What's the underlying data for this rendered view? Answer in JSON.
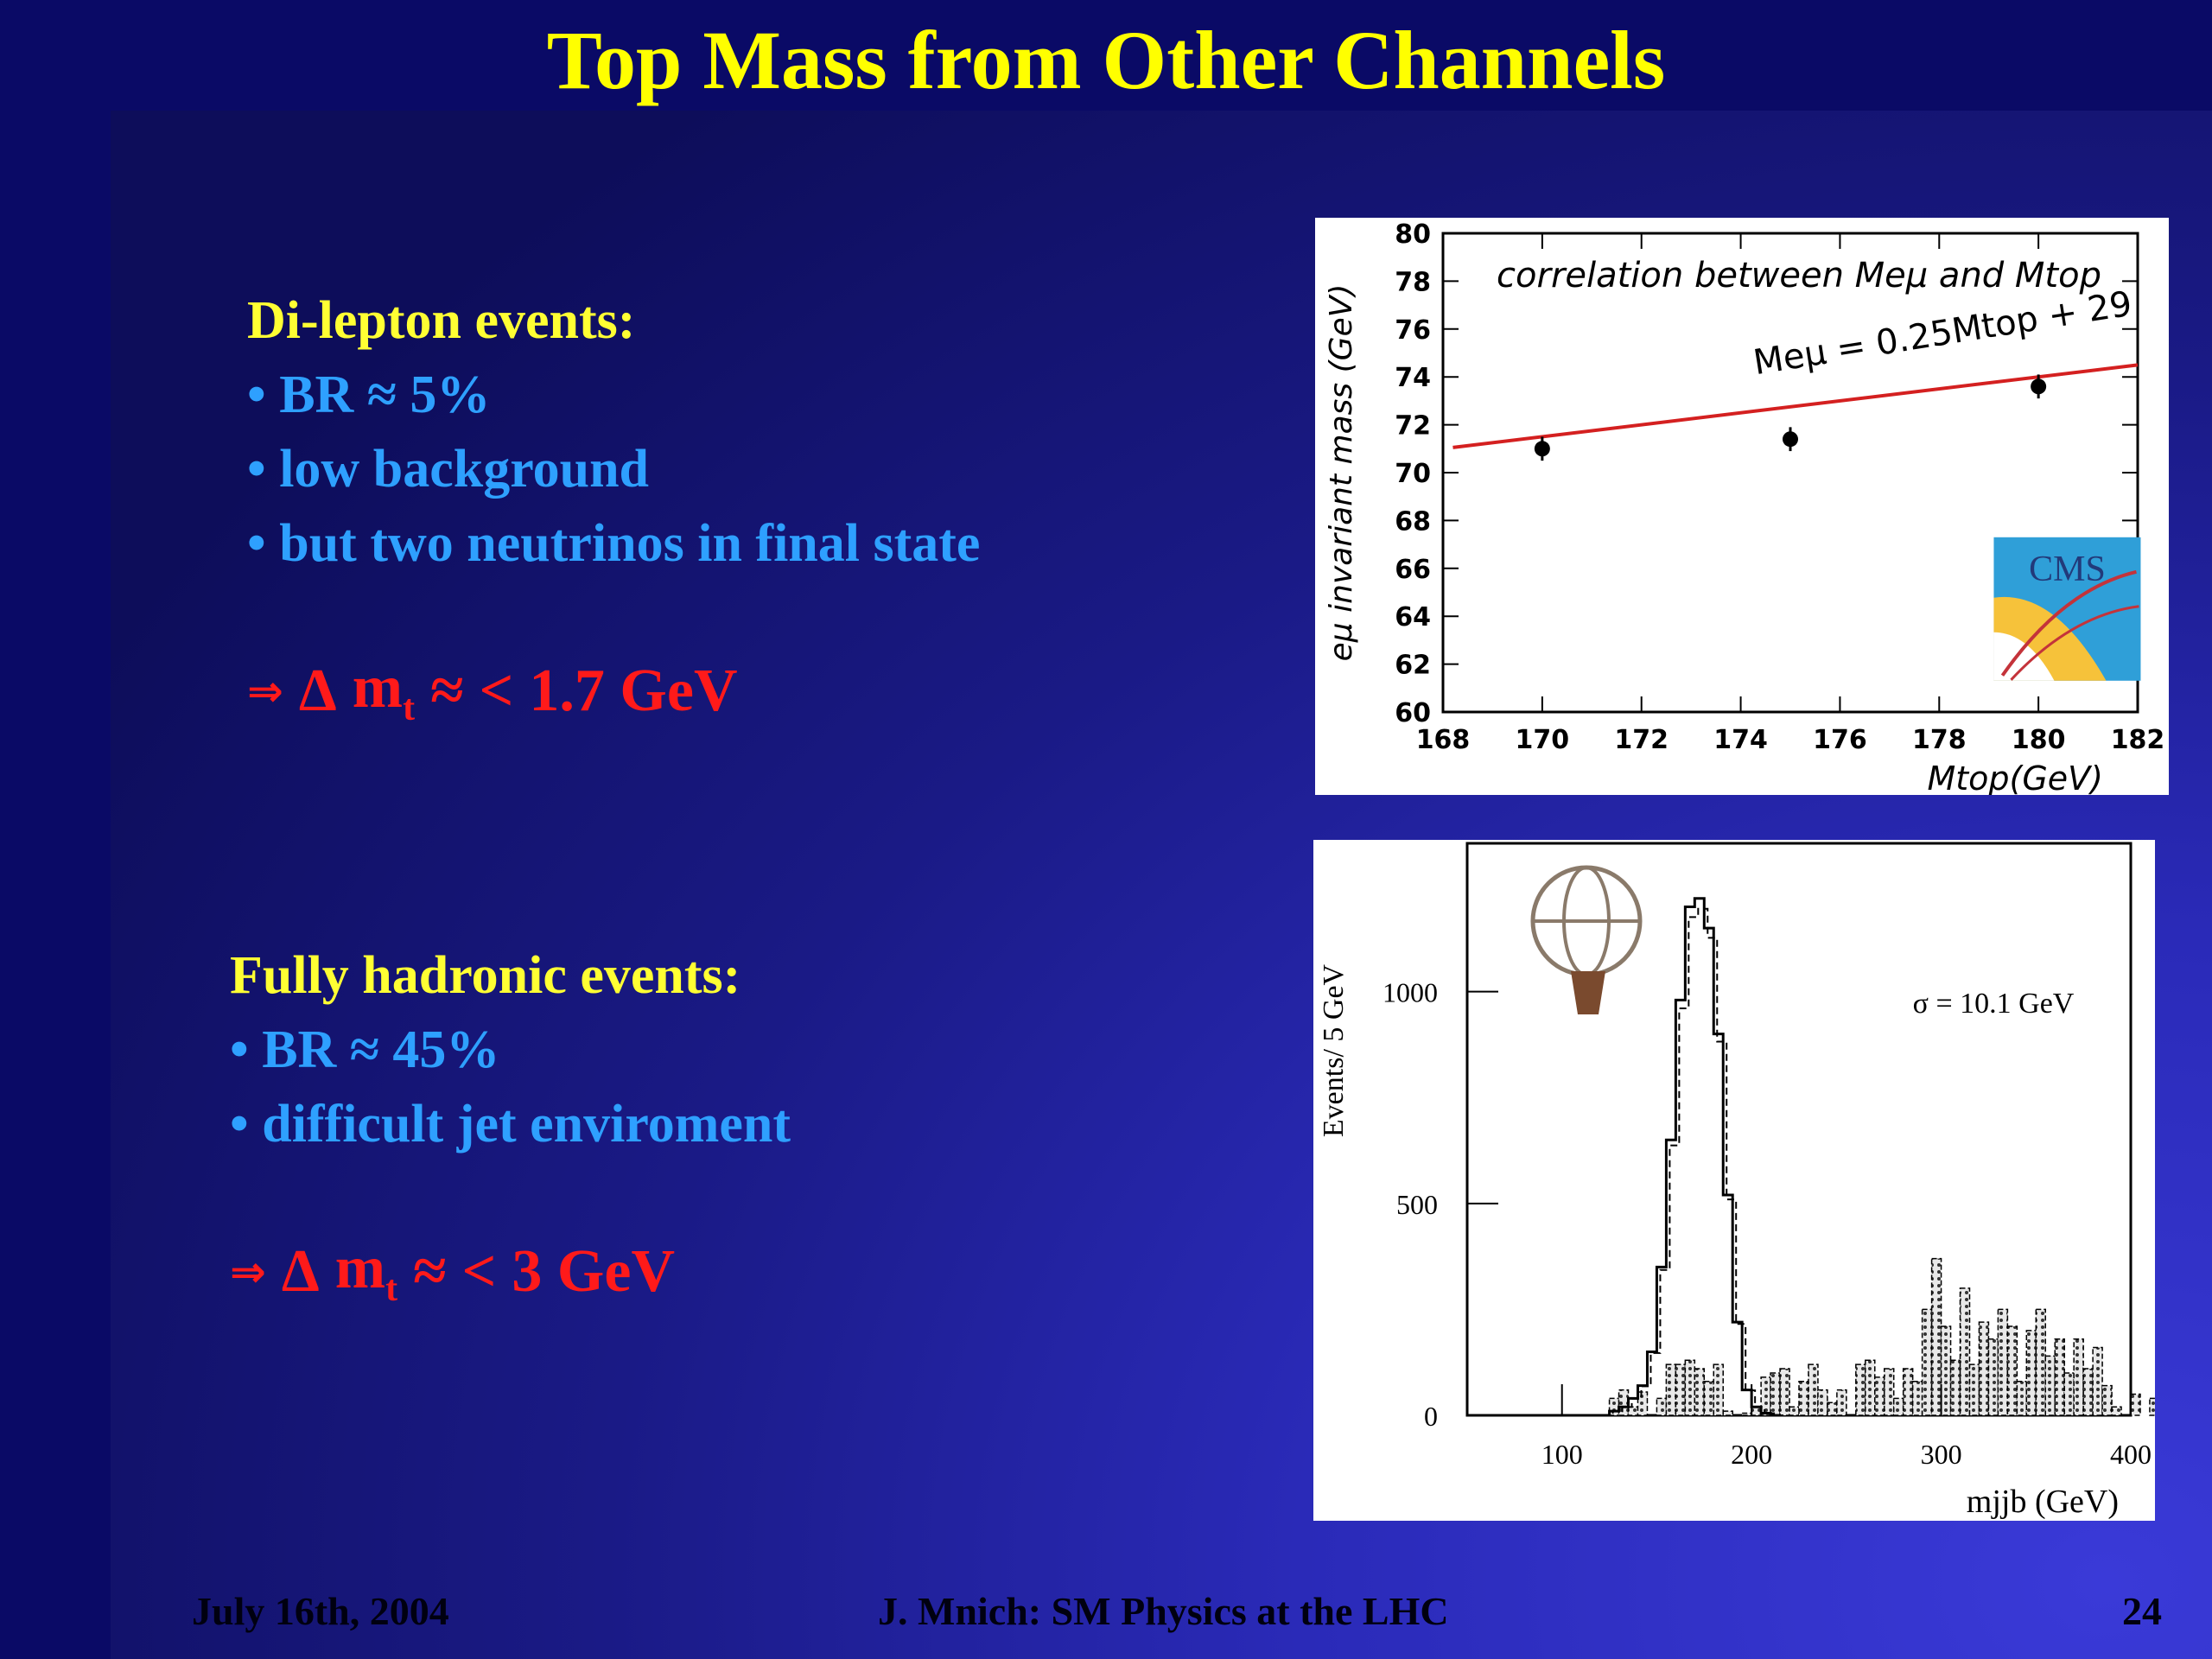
{
  "slide": {
    "title": "Top Mass from Other Channels",
    "footer_left": "July 16th, 2004",
    "footer_center": "J. Mnich: SM Physics at the LHC",
    "footer_right": "24"
  },
  "dilepton": {
    "heading": "Di-lepton events:",
    "bullets": [
      "• BR ≈ 5%",
      "• low background",
      "• but two neutrinos in final state"
    ],
    "result_symbol": "m",
    "result_sub": "t",
    "result_value": "1.7 GeV",
    "relation_glyph": "≈",
    "lt_glyph": "<"
  },
  "hadronic": {
    "heading": "Fully hadronic events:",
    "bullets": [
      "• BR ≈ 45%",
      "• difficult jet enviroment"
    ],
    "result_symbol": "m",
    "result_sub": "t",
    "result_value": "3 GeV",
    "relation_glyph": "≈",
    "lt_glyph": "<"
  },
  "colors": {
    "title": "#ffff00",
    "heading": "#ffff33",
    "bullet": "#2ea0ff",
    "result": "#ff1a1a",
    "fit_line": "#d42020"
  },
  "icons": [
    "arrow-icon",
    "delta-icon",
    "approx-icon",
    "less-than-icon",
    "cms-logo",
    "atlas-logo"
  ],
  "chart_data": [
    {
      "type": "scatter",
      "title": "correlation between Meμ and Mtop",
      "annotation": "Meμ = 0.25Mtop + 29",
      "xlabel": "Mtop(GeV)",
      "ylabel": "eμ invariant mass (GeV)",
      "xlim": [
        168,
        182
      ],
      "ylim": [
        60,
        80
      ],
      "x_ticks": [
        "168",
        "170",
        "172",
        "174",
        "176",
        "178",
        "180",
        "182"
      ],
      "y_ticks": [
        "60",
        "62",
        "64",
        "66",
        "68",
        "70",
        "72",
        "74",
        "76",
        "78",
        "80"
      ],
      "points": [
        {
          "x": 170,
          "y": 71.0,
          "err": 0.5
        },
        {
          "x": 175,
          "y": 71.4,
          "err": 0.5
        },
        {
          "x": 180,
          "y": 73.6,
          "err": 0.5
        }
      ],
      "fit": {
        "slope": 0.25,
        "intercept": 29,
        "x_range": [
          168.2,
          182
        ]
      },
      "legend": "CMS"
    },
    {
      "type": "histogram",
      "annotation": "σ = 10.1 GeV",
      "xlabel": "mjjb (GeV)",
      "ylabel": "Events/ 5 GeV",
      "xlim": [
        50,
        400
      ],
      "ylim": [
        0,
        1350
      ],
      "x_ticks": [
        "100",
        "200",
        "300",
        "400"
      ],
      "y_ticks": [
        "0",
        "500",
        "1000"
      ],
      "bin_width": 5,
      "signal_bins_start": 120,
      "signal": [
        0,
        10,
        20,
        40,
        70,
        150,
        350,
        650,
        980,
        1200,
        1220,
        1150,
        900,
        520,
        220,
        60,
        20,
        5,
        0
      ],
      "background_bins_start": 120,
      "background": [
        0,
        40,
        60,
        20,
        55,
        0,
        40,
        120,
        120,
        130,
        110,
        80,
        120,
        10,
        0,
        5,
        20,
        90,
        100,
        110,
        20,
        80,
        120,
        60,
        30,
        60,
        0,
        120,
        130,
        90,
        110,
        40,
        110,
        80,
        250,
        370,
        210,
        130,
        300,
        120,
        220,
        180,
        250,
        210,
        80,
        200,
        250,
        140,
        180,
        100,
        180,
        110,
        160,
        70,
        20,
        0,
        50,
        0,
        40,
        0,
        0
      ],
      "legend": "ATLAS"
    }
  ]
}
